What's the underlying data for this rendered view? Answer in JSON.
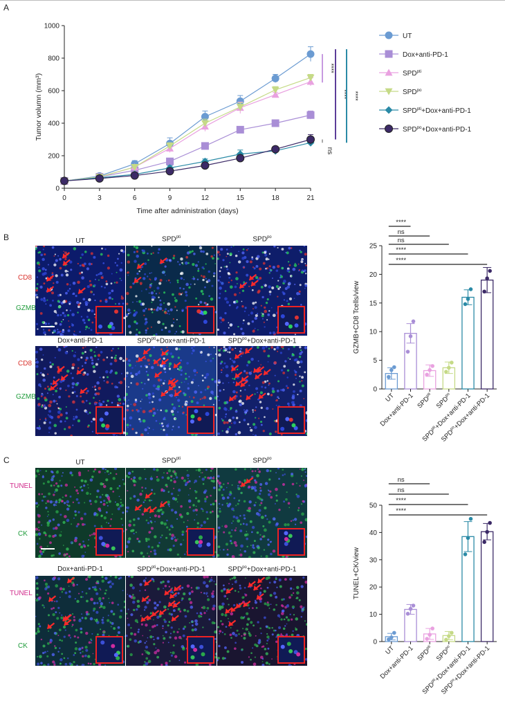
{
  "panels": {
    "a": "A",
    "b": "B",
    "c": "C"
  },
  "colors": {
    "ut": "#6b9bd2",
    "dox": "#a98ed6",
    "pti": "#e9a1e0",
    "po": "#c5da86",
    "pti_combo": "#2a8aa6",
    "po_combo": "#3c2a67"
  },
  "chart_data": [
    {
      "type": "line",
      "xlabel": "Time after administration (days)",
      "ylabel": "Tumor volumn (mm³)",
      "xlim": [
        0,
        21
      ],
      "ylim": [
        0,
        1000
      ],
      "x": [
        0,
        3,
        6,
        9,
        12,
        15,
        18,
        21
      ],
      "xticks": [
        "0",
        "3",
        "6",
        "9",
        "12",
        "15",
        "18",
        "21"
      ],
      "yticks": [
        "0",
        "200",
        "400",
        "600",
        "800",
        "1000"
      ],
      "legend_position": "right",
      "series": [
        {
          "name": "UT",
          "marker": "circle",
          "values": [
            45,
            75,
            150,
            275,
            440,
            535,
            675,
            825
          ],
          "err": [
            10,
            12,
            20,
            35,
            35,
            35,
            25,
            45
          ]
        },
        {
          "name": "Dox+anti-PD-1",
          "marker": "square",
          "values": [
            45,
            70,
            110,
            165,
            260,
            360,
            400,
            450
          ],
          "err": [
            8,
            10,
            15,
            20,
            20,
            15,
            12,
            25
          ]
        },
        {
          "name": "SPD",
          "sup": "pti",
          "marker": "triangle-up",
          "values": [
            45,
            70,
            130,
            245,
            380,
            495,
            575,
            655
          ],
          "err": [
            8,
            10,
            15,
            25,
            30,
            35,
            15,
            25
          ]
        },
        {
          "name": "SPD",
          "sup": "po",
          "marker": "triangle-down",
          "values": [
            45,
            70,
            130,
            260,
            400,
            500,
            605,
            680
          ],
          "err": [
            8,
            10,
            15,
            20,
            25,
            25,
            20,
            20
          ]
        },
        {
          "name": "SPD",
          "sup": "pti",
          "suffix": "+Dox+anti-PD-1",
          "marker": "diamond",
          "values": [
            45,
            65,
            85,
            125,
            165,
            210,
            230,
            280
          ],
          "err": [
            8,
            8,
            10,
            15,
            15,
            25,
            20,
            20
          ]
        },
        {
          "name": "SPD",
          "sup": "po",
          "suffix": "+Dox+anti-PD-1",
          "marker": "circle-filled",
          "values": [
            45,
            60,
            78,
            105,
            140,
            185,
            240,
            300
          ],
          "err": [
            8,
            8,
            10,
            15,
            15,
            15,
            15,
            30
          ]
        }
      ],
      "significance": [
        "****",
        "****",
        "****",
        "ns"
      ]
    },
    {
      "type": "bar",
      "ylabel": "GZMB+CD8 Tcells/view",
      "ylim": [
        0,
        25
      ],
      "yticks": [
        "0",
        "5",
        "10",
        "15",
        "20",
        "25"
      ],
      "categories": [
        {
          "name": "UT"
        },
        {
          "name": "Dox+anti-PD-1"
        },
        {
          "name": "SPD",
          "sup": "pti"
        },
        {
          "name": "SPD",
          "sup": "po"
        },
        {
          "name": "SPD",
          "sup": "pti",
          "suffix": "+Dox+anti-PD-1"
        },
        {
          "name": "SPD",
          "sup": "po",
          "suffix": "+Dox+anti-PD-1"
        }
      ],
      "values": [
        2.7,
        9.7,
        3.2,
        3.7,
        16.0,
        19.0
      ],
      "err": [
        1.0,
        1.7,
        1.0,
        1.0,
        1.3,
        2.2
      ],
      "points": [
        [
          2.1,
          3.3,
          3.8
        ],
        [
          6.5,
          9.2,
          11.8
        ],
        [
          2.5,
          3.3,
          4.0
        ],
        [
          3.0,
          3.7,
          4.6
        ],
        [
          14.8,
          15.7,
          17.4
        ],
        [
          17.0,
          19.3,
          20.6
        ]
      ],
      "significance": [
        "****",
        "ns",
        "ns",
        "****",
        "****"
      ]
    },
    {
      "type": "bar",
      "ylabel": "TUNEL+CK/view",
      "ylim": [
        0,
        50
      ],
      "yticks": [
        "0",
        "10",
        "20",
        "30",
        "40",
        "50"
      ],
      "categories": [
        {
          "name": "UT"
        },
        {
          "name": "Dox+anti-PD-1"
        },
        {
          "name": "SPD",
          "sup": "pti"
        },
        {
          "name": "SPD",
          "sup": "po"
        },
        {
          "name": "SPD",
          "sup": "pti",
          "suffix": "+Dox+anti-PD-1"
        },
        {
          "name": "SPD",
          "sup": "po",
          "suffix": "+Dox+anti-PD-1"
        }
      ],
      "values": [
        1.8,
        11.8,
        2.8,
        2.2,
        38.5,
        40.3
      ],
      "err": [
        1.2,
        1.8,
        2.0,
        1.5,
        5.5,
        3.0
      ],
      "points": [
        [
          0.8,
          1.5,
          3.2
        ],
        [
          10.2,
          12.0,
          13.2
        ],
        [
          1.0,
          2.5,
          4.8
        ],
        [
          0.7,
          2.0,
          3.2
        ],
        [
          32.0,
          38.0,
          45.0
        ],
        [
          36.5,
          40.2,
          43.5
        ]
      ],
      "significance": [
        "ns",
        "ns",
        "****",
        "****"
      ]
    }
  ],
  "panel_b": {
    "side_labels": [
      "CD8",
      "GZMB"
    ],
    "row1": [
      {
        "name": "UT"
      },
      {
        "name": "SPD",
        "sup": "pti"
      },
      {
        "name": "SPD",
        "sup": "po"
      }
    ],
    "row2": [
      {
        "name": "Dox+anti-PD-1"
      },
      {
        "name": "SPD",
        "sup": "pti",
        "suffix": "+Dox+anti-PD-1"
      },
      {
        "name": "SPD",
        "sup": "po",
        "suffix": "+Dox+anti-PD-1"
      }
    ]
  },
  "panel_c": {
    "side_labels": [
      "TUNEL",
      "CK"
    ],
    "row1": [
      {
        "name": "UT"
      },
      {
        "name": "SPD",
        "sup": "pti"
      },
      {
        "name": "SPD",
        "sup": "po"
      }
    ],
    "row2": [
      {
        "name": "Dox+anti-PD-1"
      },
      {
        "name": "SPD",
        "sup": "pti",
        "suffix": "+Dox+anti-PD-1"
      },
      {
        "name": "SPD",
        "sup": "po",
        "suffix": "+Dox+anti-PD-1"
      }
    ]
  }
}
